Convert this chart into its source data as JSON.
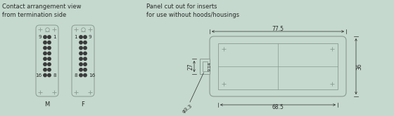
{
  "bg_color": "#c5d9ce",
  "line_color": "#8a9a90",
  "dark_color": "#3a3a3a",
  "text_color": "#2a2a2a",
  "title_left": "Contact arrangement view\nfrom termination side",
  "title_right": "Panel cut out for inserts\nfor use without hoods/housings",
  "label_M": "M",
  "label_F": "F",
  "dim_77_5": "77.5",
  "dim_68_5": "68.5",
  "dim_27": "27",
  "dim_36": "36",
  "dim_9_14": "9.14",
  "dim_3_3": "φ3.3",
  "connector_face_color": "#c5d9ce",
  "connector_dot_color": "#2a2a2a"
}
